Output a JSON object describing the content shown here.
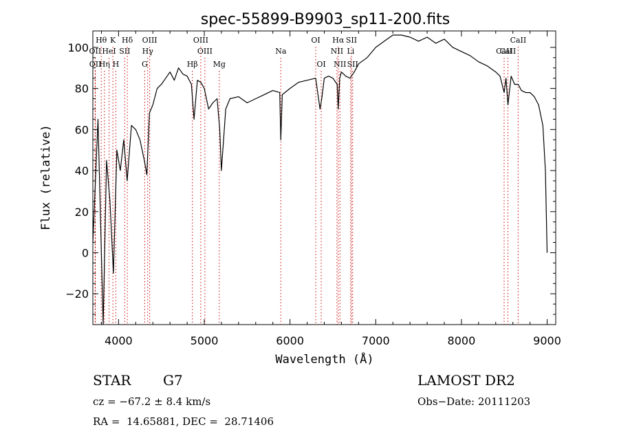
{
  "chart_data": {
    "type": "line",
    "title": "spec-55899-B9903_sp11-200.fits",
    "xlabel": "Wavelength (Å)",
    "ylabel": "Flux (relative)",
    "xlim": [
      3700,
      9100
    ],
    "ylim": [
      -35,
      108
    ],
    "x_ticks": [
      4000,
      5000,
      6000,
      7000,
      8000,
      9000
    ],
    "y_ticks": [
      -20,
      0,
      20,
      40,
      60,
      80,
      100
    ],
    "grid": false,
    "series": [
      {
        "x": [
          3700,
          3760,
          3820,
          3860,
          3900,
          3940,
          3980,
          4020,
          4060,
          4100,
          4150,
          4200,
          4250,
          4300,
          4330,
          4360,
          4400,
          4450,
          4500,
          4550,
          4600,
          4650,
          4700,
          4750,
          4800,
          4850,
          4880,
          4920,
          4960,
          5000,
          5050,
          5100,
          5150,
          5180,
          5200,
          5250,
          5300,
          5400,
          5500,
          5600,
          5700,
          5800,
          5880,
          5893,
          5910,
          6000,
          6100,
          6200,
          6300,
          6350,
          6370,
          6400,
          6450,
          6500,
          6550,
          6563,
          6580,
          6600,
          6650,
          6700,
          6750,
          6800,
          6900,
          7000,
          7100,
          7200,
          7300,
          7400,
          7500,
          7600,
          7700,
          7800,
          7900,
          8000,
          8100,
          8200,
          8300,
          8400,
          8450,
          8498,
          8520,
          8542,
          8580,
          8620,
          8662,
          8700,
          8750,
          8800,
          8850,
          8900,
          8950,
          8980,
          9000
        ],
        "y": [
          5,
          65,
          -35,
          45,
          25,
          -10,
          50,
          40,
          55,
          35,
          62,
          60,
          55,
          45,
          38,
          68,
          72,
          80,
          82,
          85,
          88,
          84,
          90,
          87,
          86,
          82,
          65,
          84,
          83,
          80,
          70,
          73,
          75,
          60,
          40,
          70,
          75,
          76,
          73,
          75,
          77,
          79,
          78,
          55,
          77,
          80,
          83,
          84,
          85,
          70,
          75,
          85,
          86,
          85,
          82,
          70,
          85,
          88,
          86,
          85,
          88,
          92,
          95,
          100,
          103,
          106,
          106,
          105,
          103,
          105,
          102,
          104,
          100,
          98,
          96,
          93,
          91,
          88,
          86,
          78,
          85,
          72,
          86,
          82,
          82,
          79,
          78,
          78,
          76,
          72,
          62,
          40,
          0
        ]
      }
    ],
    "lines": [
      {
        "name": "Hθ",
        "x": 3798,
        "row": 1
      },
      {
        "name": "K",
        "x": 3934,
        "row": 1
      },
      {
        "name": "Hδ",
        "x": 4102,
        "row": 1
      },
      {
        "name": "OIII",
        "x": 4363,
        "row": 1
      },
      {
        "name": "OIII",
        "x": 4959,
        "row": 1
      },
      {
        "name": "OI",
        "x": 6300,
        "row": 1
      },
      {
        "name": "Hα",
        "x": 6563,
        "row": 1
      },
      {
        "name": "SII",
        "x": 6717,
        "row": 1
      },
      {
        "name": "CaII",
        "x": 8662,
        "row": 1
      },
      {
        "name": "OII",
        "x": 3727,
        "row": 2
      },
      {
        "name": "HeI",
        "x": 3889,
        "row": 2
      },
      {
        "name": "SII",
        "x": 4072,
        "row": 2
      },
      {
        "name": "Hγ",
        "x": 4340,
        "row": 2
      },
      {
        "name": "OIII",
        "x": 5007,
        "row": 2
      },
      {
        "name": "Na",
        "x": 5893,
        "row": 2
      },
      {
        "name": "NII",
        "x": 6548,
        "row": 2
      },
      {
        "name": "Li",
        "x": 6708,
        "row": 2
      },
      {
        "name": "CaII",
        "x": 8498,
        "row": 2
      },
      {
        "name": "OII",
        "x": 3729,
        "row": 3
      },
      {
        "name": "Hη",
        "x": 3835,
        "row": 3
      },
      {
        "name": "H",
        "x": 3968,
        "row": 3
      },
      {
        "name": "G",
        "x": 4305,
        "row": 3
      },
      {
        "name": "Hβ",
        "x": 4861,
        "row": 3
      },
      {
        "name": "Mg",
        "x": 5175,
        "row": 3
      },
      {
        "name": "OI",
        "x": 6364,
        "row": 3
      },
      {
        "name": "NII",
        "x": 6583,
        "row": 3
      },
      {
        "name": "SII",
        "x": 6731,
        "row": 3
      },
      {
        "name": "CaII",
        "x": 8542,
        "row": 2
      }
    ],
    "line_color": "#cc0000"
  },
  "info": {
    "class": "STAR",
    "subclass": "G7",
    "survey": "LAMOST DR2",
    "cz": "cz = −67.2 ± 8.4 km/s",
    "obs_date": "Obs−Date: 20111203",
    "coords": "RA =  14.65881, DEC =  28.71406"
  }
}
